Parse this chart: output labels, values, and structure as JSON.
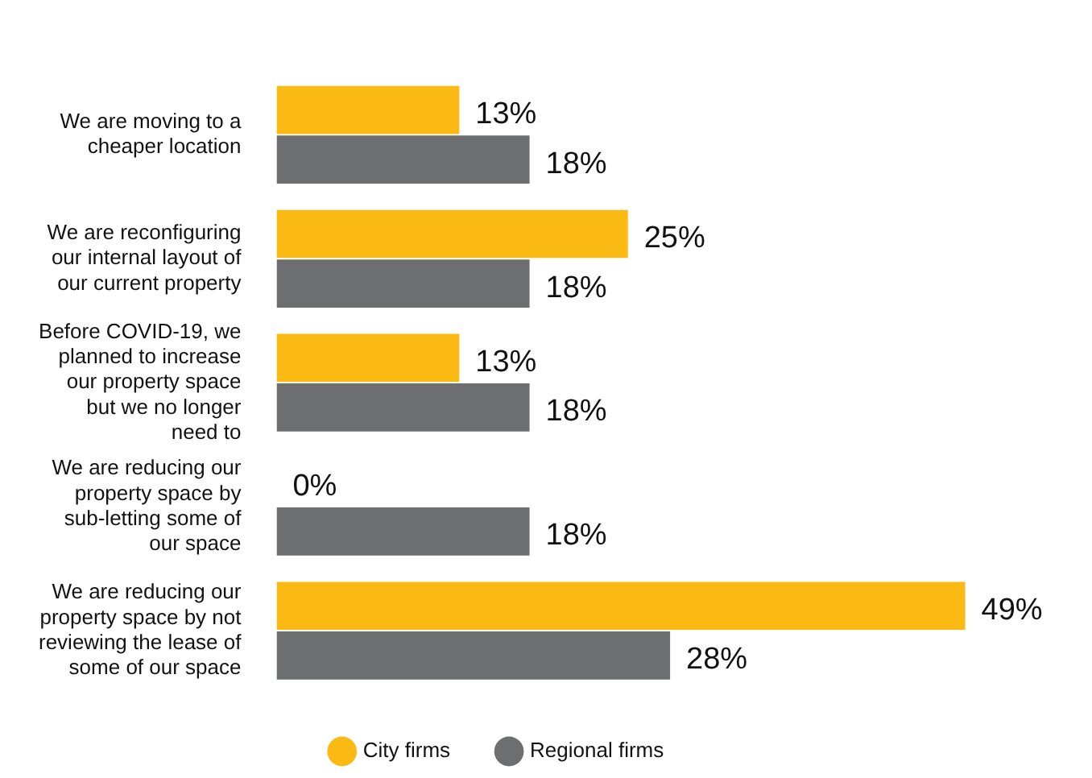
{
  "chart_data": {
    "type": "bar",
    "orientation": "horizontal",
    "categories": [
      "We are moving to a cheaper location",
      "We are reconfiguring our internal layout of our current property",
      "Before COVID-19, we planned to increase our property space but we no longer need to",
      "We are reducing our property space by sub-letting some of our space",
      "We are reducing our property space by not reviewing the lease of some of our space"
    ],
    "series": [
      {
        "name": "City firms",
        "color": "#fbb913",
        "values": [
          13,
          25,
          13,
          0,
          49
        ],
        "value_labels": [
          "13%",
          "25%",
          "13%",
          "0%",
          "49%"
        ]
      },
      {
        "name": "Regional firms",
        "color": "#6d6e70",
        "values": [
          18,
          18,
          18,
          18,
          28
        ],
        "value_labels": [
          "18%",
          "18%",
          "18%",
          "18%",
          "28%"
        ]
      }
    ],
    "legend": "bottom"
  }
}
